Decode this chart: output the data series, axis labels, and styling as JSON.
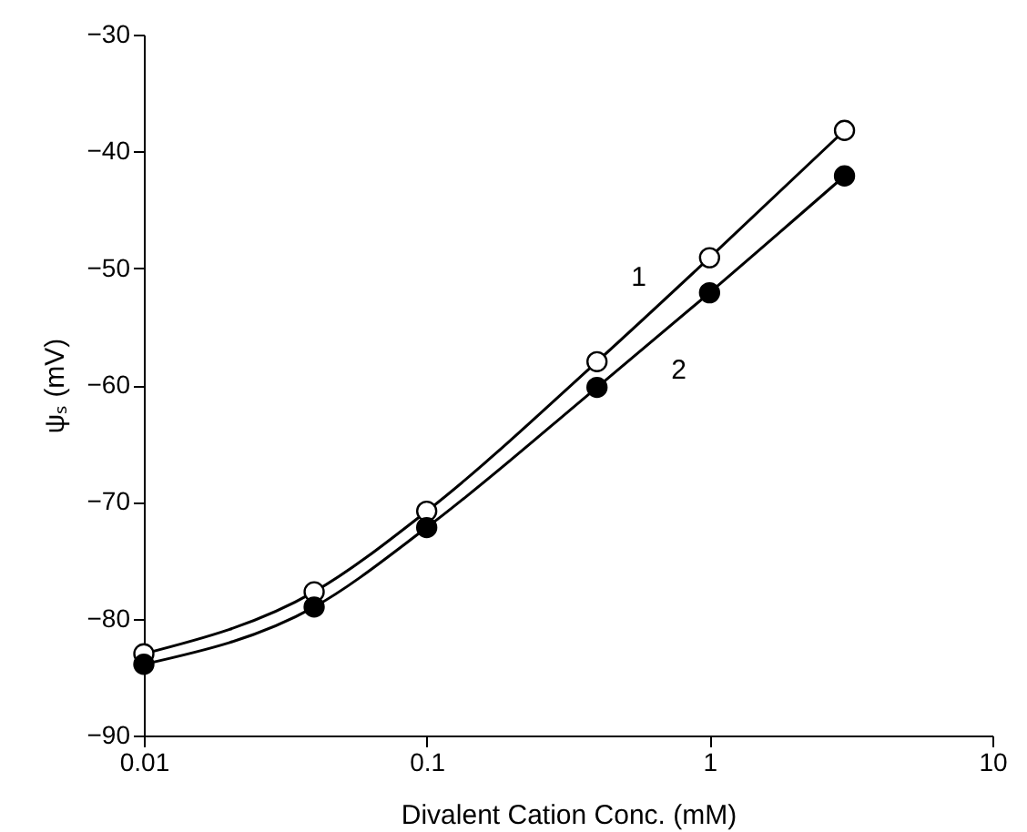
{
  "chart_data": {
    "type": "line",
    "xlabel": "Divalent Cation Conc. (mM)",
    "ylabel": "ψₛ (mV)",
    "log": "x",
    "xlim": [
      0.01,
      10
    ],
    "xticks": [
      0.01,
      0.1,
      1,
      10
    ],
    "ylim": [
      -90,
      -30
    ],
    "yticks": [
      -30,
      -40,
      -50,
      -60,
      -70,
      -80,
      -90
    ],
    "grid": false,
    "series": [
      {
        "name": "1",
        "color": "#000000",
        "marker": "none",
        "x": [
          0.01,
          0.04,
          0.1,
          0.4,
          1,
          3
        ],
        "values": [
          -83.0,
          -77.7,
          -70.8,
          -58.0,
          -49.1,
          -38.2
        ]
      },
      {
        "name": "2",
        "color": "#000000",
        "marker": "none",
        "x": [
          0.01,
          0.04,
          0.1,
          0.4,
          1,
          3
        ],
        "values": [
          -83.9,
          -79.0,
          -72.2,
          -60.2,
          -52.1,
          -42.1
        ]
      },
      {
        "type": "scatter",
        "color": "#ffffff",
        "marker": "circle",
        "x": [
          0.01,
          0.04,
          0.1,
          0.4,
          1,
          3
        ],
        "values": [
          -83.0,
          -77.7,
          -70.8,
          -58.0,
          -49.1,
          -38.2
        ]
      },
      {
        "type": "scatter",
        "color": "#000000",
        "marker": "circle",
        "x": [
          0.01,
          0.04,
          0.1,
          0.4,
          1,
          3
        ],
        "values": [
          -83.9,
          -79.0,
          -72.2,
          -60.2,
          -52.1,
          -42.1
        ]
      }
    ]
  }
}
